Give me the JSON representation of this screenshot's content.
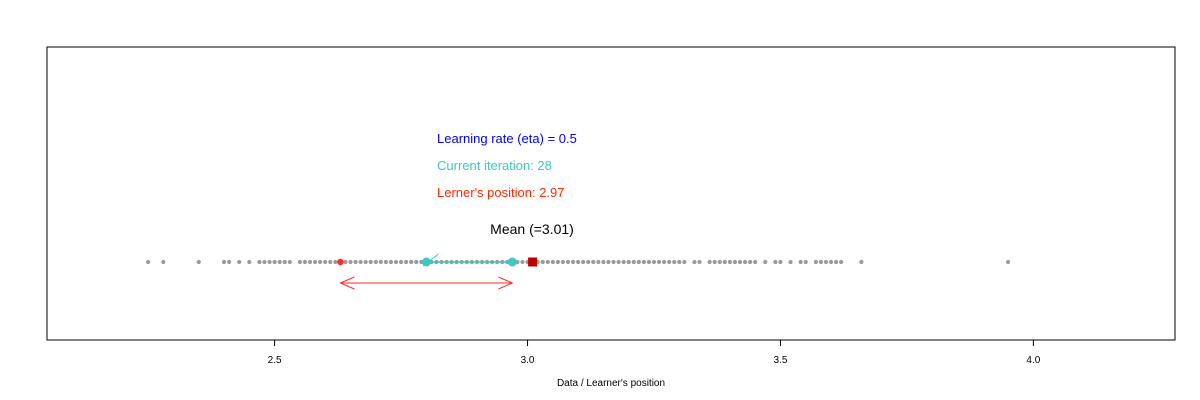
{
  "chart_data": {
    "type": "scatter",
    "xlabel": "Data / Learner's position",
    "xlim": [
      2.05,
      4.28
    ],
    "x_ticks": [
      2.5,
      3.0,
      3.5,
      4.0
    ],
    "x_tick_labels": [
      "2.5",
      "3.0",
      "3.5",
      "4.0"
    ],
    "grid": false,
    "legend": "none",
    "annotations": {
      "learning_rate": "Learning rate (eta) = 0.5",
      "iteration": "Current iteration: 28",
      "position": "Lerner's position: 2.97",
      "mean": "Mean (=3.01)"
    },
    "data_points": [
      2.25,
      2.28,
      2.35,
      2.4,
      2.41,
      2.43,
      2.45,
      2.47,
      2.48,
      2.49,
      2.5,
      2.51,
      2.52,
      2.53,
      2.55,
      2.56,
      2.57,
      2.58,
      2.59,
      2.6,
      2.61,
      2.62,
      2.63,
      2.64,
      2.65,
      2.66,
      2.67,
      2.68,
      2.69,
      2.7,
      2.71,
      2.72,
      2.73,
      2.74,
      2.75,
      2.76,
      2.77,
      2.78,
      2.79,
      2.8,
      2.81,
      2.82,
      2.83,
      2.84,
      2.85,
      2.86,
      2.87,
      2.88,
      2.89,
      2.9,
      2.91,
      2.92,
      2.93,
      2.94,
      2.95,
      2.96,
      2.97,
      2.98,
      2.99,
      3.0,
      3.01,
      3.02,
      3.03,
      3.04,
      3.05,
      3.06,
      3.07,
      3.08,
      3.09,
      3.1,
      3.11,
      3.12,
      3.13,
      3.14,
      3.15,
      3.16,
      3.17,
      3.18,
      3.19,
      3.2,
      3.21,
      3.22,
      3.23,
      3.24,
      3.25,
      3.26,
      3.27,
      3.28,
      3.29,
      3.3,
      3.31,
      3.33,
      3.34,
      3.36,
      3.37,
      3.38,
      3.39,
      3.4,
      3.41,
      3.42,
      3.43,
      3.44,
      3.45,
      3.47,
      3.49,
      3.5,
      3.52,
      3.54,
      3.55,
      3.57,
      3.58,
      3.59,
      3.6,
      3.61,
      3.62,
      3.66,
      3.95
    ],
    "mean": 3.01,
    "learner_position": 2.97,
    "previous_position": 2.8,
    "arrow_range": [
      2.63,
      2.97
    ],
    "colors": {
      "data": "#9a9a9a",
      "mean": "#c00000",
      "learner": "#3cc9c0",
      "arrow": "#ff2a2a",
      "learning_rate_text": "#0000ee",
      "iteration_text": "#3cc9c0",
      "position_text": "#ff2a00"
    }
  }
}
